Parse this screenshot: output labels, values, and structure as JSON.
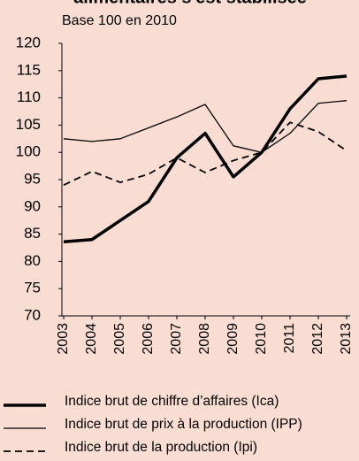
{
  "chart_data": {
    "type": "line",
    "title": "alimentaires s'est stabilisée",
    "subtitle": "Base 100 en 2010",
    "categories": [
      "2003",
      "2004",
      "2005",
      "2006",
      "2007",
      "2008",
      "2009",
      "2010",
      "2011",
      "2012",
      "2013"
    ],
    "series": [
      {
        "name": "Indice brut de chiffre d’affaires (Ica)",
        "color": "#000000",
        "style": "thick",
        "values": [
          83.6,
          84,
          87.5,
          91,
          99,
          103.5,
          95.5,
          100,
          108,
          113.5,
          114
        ]
      },
      {
        "name": "Indice brut de prix à la production (IPP)",
        "color": "#000000",
        "style": "thin",
        "values": [
          102.5,
          102,
          102.5,
          104.5,
          106.5,
          108.8,
          101.2,
          100,
          103.5,
          109,
          109.5
        ]
      },
      {
        "name": "Indice brut de la production (Ipi)",
        "color": "#000000",
        "style": "dashed",
        "values": [
          94,
          96.5,
          94.5,
          96,
          99,
          96.3,
          98.5,
          100,
          105.5,
          103.8,
          100.3
        ]
      }
    ],
    "ylim": [
      70,
      120
    ],
    "yticks": [
      70,
      75,
      80,
      85,
      90,
      95,
      100,
      105,
      110,
      115,
      120
    ],
    "grid": false
  }
}
